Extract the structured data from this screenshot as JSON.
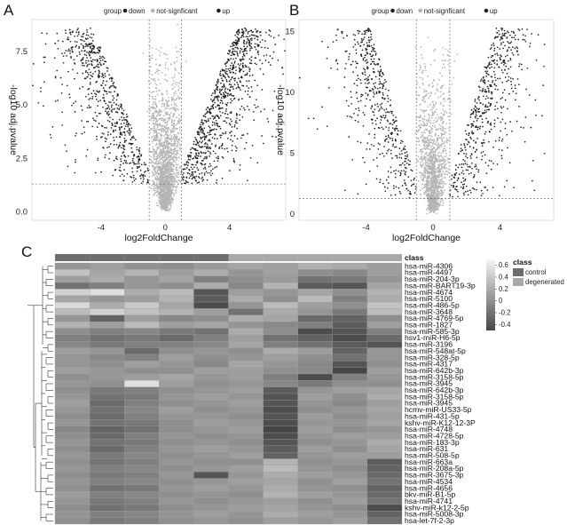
{
  "chart_data": [
    {
      "panel": "A",
      "type": "scatter",
      "legend_title": "group",
      "legend_entries": [
        {
          "label": "down",
          "color": "#222222"
        },
        {
          "label": "not-signficant",
          "color": "#b4b4b4"
        },
        {
          "label": "up",
          "color": "#222222"
        }
      ],
      "legend_position": "top",
      "xlabel": "log2FoldChange",
      "ylabel": "-log10 adj.pvalue",
      "x_ticks": [
        "-4",
        "0",
        "4"
      ],
      "y_ticks": [
        "0.0",
        "2.5",
        "5.0",
        "7.5"
      ],
      "xlim": [
        -8.3,
        7.5
      ],
      "ylim": [
        -0.4,
        9.0
      ],
      "fc_threshold": 1,
      "p_threshold_line": 1.3,
      "grid": false,
      "point_counts": {
        "down": 650,
        "not-signficant": 2000,
        "up": 900
      },
      "y_max_observed": 8.6
    },
    {
      "panel": "B",
      "type": "scatter",
      "legend_title": "group",
      "legend_entries": [
        {
          "label": "down",
          "color": "#222222"
        },
        {
          "label": "not-signficant",
          "color": "#b4b4b4"
        },
        {
          "label": "up",
          "color": "#222222"
        }
      ],
      "legend_position": "top",
      "xlabel": "log2FoldChange",
      "ylabel": "-log10 adj.pvalue",
      "x_ticks": [
        "-4",
        "0",
        "4"
      ],
      "y_ticks": [
        "0",
        "5",
        "10",
        "15"
      ],
      "xlim": [
        -8.0,
        7.2
      ],
      "ylim": [
        -0.5,
        16.0
      ],
      "fc_threshold": 1,
      "p_threshold_line": 1.3,
      "grid": false,
      "point_counts": {
        "down": 500,
        "not-signficant": 1400,
        "up": 550
      },
      "y_max_observed": 15.3
    },
    {
      "panel": "C",
      "type": "heatmap",
      "annotation_title": "class",
      "annotation_legend": [
        {
          "label": "control",
          "color": "#6e6e6e"
        },
        {
          "label": "degenerated",
          "color": "#a9a9a9"
        }
      ],
      "column_classes": [
        "control",
        "control",
        "control",
        "control",
        "control",
        "degenerated",
        "degenerated",
        "degenerated",
        "degenerated",
        "degenerated"
      ],
      "color_scale_ticks": [
        "0.6",
        "0.4",
        "0.2",
        "0",
        "-0.2",
        "-0.4"
      ],
      "color_range": [
        -0.5,
        0.7
      ],
      "rows": [
        "hsa-miR-4306",
        "hsa-miR-4497",
        "hsa-miR-204-3p",
        "hsa-miR-BART19-3p",
        "hsa-miR-4674",
        "hsa-miR-5100",
        "hsa-miR-486-5p",
        "hsa-miR-3648",
        "hsa-miR-4769-5p",
        "hsa-miR-1827",
        "hsa-miR-585-3p",
        "hsv1-miR-H6-5p",
        "hsa-miR-3196",
        "hsa-miR-548at-5p",
        "hsa-miR-328-5p",
        "hsa-miR-4317",
        "hsa-miR-642b-3p",
        "hsa-miR-3158-5p",
        "hsa-miR-3945",
        "hsa-miR-642b-3p",
        "hsa-miR-3158-5p",
        "hsa-miR-3945",
        "hcmv-miR-US33-5p",
        "hsa-miR-431-5p",
        "kshv-miR-K12-12-3P",
        "hsa-miR-4748",
        "hsa-miR-4728-5p",
        "hsa-miR-183-3p",
        "hsa-miR-631",
        "hsa-miR-508-5p",
        "hsa-miR-663a",
        "hsa-miR-208a-5p",
        "hsa-miR-3675-3p",
        "hsa-miR-4534",
        "hsa-miR-4656",
        "bkv-miR-B1-5p",
        "hsa-miR-4741",
        "kshv-miR-k12-2-5p",
        "hsa-miR-5008-3p",
        "hsa-let-7f-2-3p"
      ],
      "values": [
        [
          0.05,
          0.1,
          0.02,
          0.0,
          0.08,
          0.15,
          0.12,
          0.22,
          0.18,
          0.1
        ],
        [
          0.35,
          0.15,
          0.25,
          0.1,
          0.2,
          0.05,
          0.12,
          0.0,
          -0.05,
          0.1
        ],
        [
          0.1,
          0.2,
          0.05,
          0.15,
          -0.1,
          0.0,
          0.08,
          -0.2,
          -0.15,
          0.05
        ],
        [
          -0.2,
          -0.1,
          0.05,
          0.0,
          0.2,
          -0.05,
          0.25,
          -0.35,
          -0.4,
          0.15
        ],
        [
          0.45,
          0.55,
          0.2,
          0.3,
          -0.4,
          0.1,
          0.05,
          0.15,
          0.0,
          0.25
        ],
        [
          0.15,
          0.05,
          0.1,
          0.25,
          -0.35,
          0.2,
          0.0,
          0.3,
          -0.1,
          0.2
        ],
        [
          0.5,
          0.2,
          0.4,
          0.15,
          -0.45,
          0.05,
          0.3,
          0.1,
          0.0,
          0.35
        ],
        [
          0.3,
          0.45,
          0.35,
          0.25,
          0.1,
          -0.2,
          0.2,
          0.05,
          -0.15,
          0.3
        ],
        [
          0.05,
          -0.3,
          0.1,
          -0.05,
          0.0,
          0.2,
          0.15,
          -0.25,
          -0.3,
          0.0
        ],
        [
          0.25,
          0.1,
          0.3,
          0.1,
          0.15,
          0.05,
          -0.05,
          -0.1,
          -0.35,
          0.1
        ],
        [
          0.0,
          -0.1,
          -0.05,
          -0.15,
          -0.2,
          0.2,
          0.0,
          -0.45,
          -0.4,
          -0.1
        ],
        [
          -0.1,
          -0.2,
          -0.15,
          -0.25,
          -0.1,
          0.1,
          -0.2,
          -0.3,
          -0.45,
          -0.25
        ],
        [
          -0.05,
          -0.15,
          -0.1,
          -0.1,
          -0.05,
          0.15,
          -0.1,
          -0.2,
          -0.35,
          -0.4
        ],
        [
          0.1,
          0.05,
          -0.25,
          0.0,
          0.05,
          0.0,
          0.2,
          0.1,
          -0.3,
          0.05
        ],
        [
          0.05,
          -0.05,
          -0.1,
          0.1,
          0.0,
          0.05,
          0.1,
          0.0,
          -0.2,
          0.05
        ],
        [
          0.05,
          0.0,
          0.1,
          0.05,
          -0.05,
          0.15,
          0.05,
          -0.05,
          -0.4,
          0.0
        ],
        [
          0.1,
          0.05,
          0.0,
          0.0,
          0.1,
          0.1,
          0.0,
          -0.05,
          -0.5,
          0.1
        ],
        [
          0.0,
          0.05,
          0.1,
          0.15,
          0.05,
          0.1,
          -0.1,
          -0.45,
          -0.1,
          0.05
        ],
        [
          0.05,
          0.0,
          0.55,
          0.1,
          0.0,
          0.05,
          -0.05,
          -0.15,
          0.0,
          0.0
        ],
        [
          0.0,
          -0.15,
          -0.1,
          0.0,
          0.05,
          0.1,
          -0.35,
          0.05,
          0.1,
          0.15
        ],
        [
          0.05,
          -0.2,
          -0.15,
          0.05,
          0.1,
          0.05,
          -0.4,
          0.1,
          0.0,
          0.2
        ],
        [
          0.1,
          -0.25,
          -0.1,
          0.0,
          0.05,
          0.1,
          -0.4,
          0.05,
          -0.05,
          0.1
        ],
        [
          0.05,
          -0.2,
          -0.05,
          0.1,
          0.0,
          0.05,
          -0.45,
          0.0,
          0.05,
          0.15
        ],
        [
          0.0,
          -0.25,
          -0.1,
          0.05,
          0.05,
          0.0,
          -0.4,
          0.1,
          0.0,
          0.1
        ],
        [
          0.05,
          -0.2,
          -0.15,
          0.0,
          0.1,
          0.05,
          -0.45,
          0.05,
          0.05,
          0.15
        ],
        [
          -0.05,
          -0.3,
          -0.2,
          0.0,
          0.05,
          0.1,
          -0.5,
          0.1,
          0.0,
          0.05
        ],
        [
          0.0,
          -0.25,
          -0.1,
          0.05,
          0.0,
          0.05,
          -0.45,
          0.05,
          0.1,
          0.1
        ],
        [
          0.05,
          -0.2,
          -0.15,
          0.0,
          0.05,
          0.0,
          -0.4,
          0.0,
          0.05,
          0.2
        ],
        [
          0.0,
          -0.25,
          -0.1,
          0.05,
          0.1,
          0.05,
          -0.35,
          0.1,
          0.0,
          0.15
        ],
        [
          0.05,
          -0.15,
          -0.05,
          0.0,
          0.05,
          0.1,
          -0.3,
          0.05,
          0.1,
          0.1
        ],
        [
          0.0,
          -0.2,
          -0.1,
          0.05,
          0.0,
          0.0,
          0.25,
          0.0,
          0.05,
          -0.35
        ],
        [
          0.05,
          -0.1,
          -0.05,
          0.0,
          0.05,
          0.1,
          0.3,
          0.05,
          0.0,
          -0.3
        ],
        [
          0.0,
          -0.15,
          -0.1,
          0.05,
          -0.4,
          0.05,
          0.2,
          0.1,
          0.05,
          -0.25
        ],
        [
          0.05,
          -0.1,
          -0.05,
          0.0,
          0.05,
          0.1,
          0.15,
          0.0,
          0.1,
          -0.2
        ],
        [
          0.0,
          -0.2,
          -0.15,
          0.05,
          0.1,
          0.05,
          0.2,
          0.05,
          0.0,
          -0.3
        ],
        [
          0.1,
          -0.1,
          -0.05,
          0.0,
          0.05,
          0.0,
          0.25,
          0.1,
          0.05,
          -0.25
        ],
        [
          0.05,
          -0.15,
          -0.1,
          0.05,
          0.0,
          0.05,
          0.1,
          0.0,
          0.1,
          -0.2
        ],
        [
          0.0,
          -0.2,
          -0.15,
          0.0,
          0.05,
          0.1,
          0.15,
          0.05,
          0.0,
          -0.45
        ],
        [
          0.05,
          -0.1,
          -0.05,
          0.05,
          0.1,
          0.05,
          0.2,
          0.1,
          0.05,
          -0.3
        ],
        [
          0.0,
          -0.15,
          -0.1,
          0.0,
          0.05,
          0.0,
          0.1,
          0.05,
          0.1,
          -0.2
        ]
      ]
    }
  ]
}
